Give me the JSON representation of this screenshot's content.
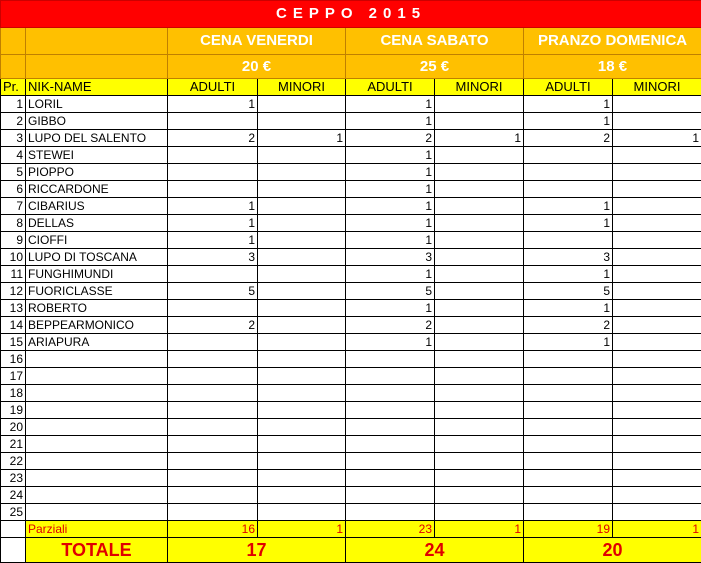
{
  "title": "CEPPO 2015",
  "events": [
    {
      "name": "CENA VENERDI",
      "price": "20 €"
    },
    {
      "name": "CENA SABATO",
      "price": "25 €"
    },
    {
      "name": "PRANZO DOMENICA",
      "price": "18 €"
    }
  ],
  "headers": {
    "pr": "Pr.",
    "name": "NIK-NAME",
    "adulti": "ADULTI",
    "minori": "MINORI"
  },
  "rows": [
    [
      "1",
      "LORIL",
      "1",
      "",
      "1",
      "",
      "1",
      ""
    ],
    [
      "2",
      "GIBBO",
      "",
      "",
      "1",
      "",
      "1",
      ""
    ],
    [
      "3",
      "LUPO DEL SALENTO",
      "2",
      "1",
      "2",
      "1",
      "2",
      "1"
    ],
    [
      "4",
      "STEWEI",
      "",
      "",
      "1",
      "",
      "",
      ""
    ],
    [
      "5",
      "PIOPPO",
      "",
      "",
      "1",
      "",
      "",
      ""
    ],
    [
      "6",
      "RICCARDONE",
      "",
      "",
      "1",
      "",
      "",
      ""
    ],
    [
      "7",
      "CIBARIUS",
      "1",
      "",
      "1",
      "",
      "1",
      ""
    ],
    [
      "8",
      "DELLAS",
      "1",
      "",
      "1",
      "",
      "1",
      ""
    ],
    [
      "9",
      "CIOFFI",
      "1",
      "",
      "1",
      "",
      "",
      ""
    ],
    [
      "10",
      "LUPO DI TOSCANA",
      "3",
      "",
      "3",
      "",
      "3",
      ""
    ],
    [
      "11",
      "FUNGHIMUNDI",
      "",
      "",
      "1",
      "",
      "1",
      ""
    ],
    [
      "12",
      "FUORICLASSE",
      "5",
      "",
      "5",
      "",
      "5",
      ""
    ],
    [
      "13",
      "ROBERTO",
      "",
      "",
      "1",
      "",
      "1",
      ""
    ],
    [
      "14",
      "BEPPEARMONICO",
      "2",
      "",
      "2",
      "",
      "2",
      ""
    ],
    [
      "15",
      "ARIAPURA",
      "",
      "",
      "1",
      "",
      "1",
      ""
    ],
    [
      "16",
      "",
      "",
      "",
      "",
      "",
      "",
      ""
    ],
    [
      "17",
      "",
      "",
      "",
      "",
      "",
      "",
      ""
    ],
    [
      "18",
      "",
      "",
      "",
      "",
      "",
      "",
      ""
    ],
    [
      "19",
      "",
      "",
      "",
      "",
      "",
      "",
      ""
    ],
    [
      "20",
      "",
      "",
      "",
      "",
      "",
      "",
      ""
    ],
    [
      "21",
      "",
      "",
      "",
      "",
      "",
      "",
      ""
    ],
    [
      "22",
      "",
      "",
      "",
      "",
      "",
      "",
      ""
    ],
    [
      "23",
      "",
      "",
      "",
      "",
      "",
      "",
      ""
    ],
    [
      "24",
      "",
      "",
      "",
      "",
      "",
      "",
      ""
    ],
    [
      "25",
      "",
      "",
      "",
      "",
      "",
      "",
      ""
    ]
  ],
  "parziali": {
    "label": "Parziali",
    "values": [
      "16",
      "1",
      "23",
      "1",
      "19",
      "1"
    ]
  },
  "totale": {
    "label": "TOTALE",
    "values": [
      "17",
      "24",
      "20"
    ]
  }
}
